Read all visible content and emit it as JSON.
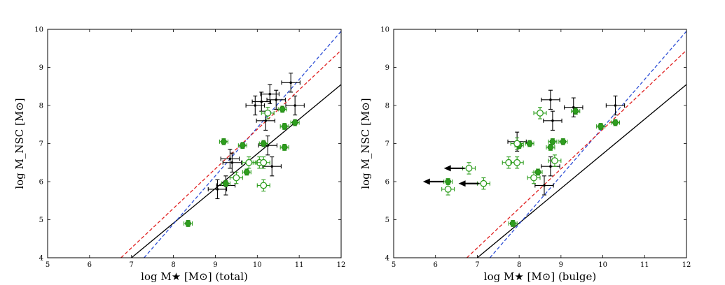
{
  "chart_data": [
    {
      "type": "scatter",
      "panel": "left",
      "xlabel": "log M★ [M⊙]  (total)",
      "ylabel": "log M_NSC  [M⊙]",
      "xlim": [
        5,
        12
      ],
      "ylim": [
        4,
        10
      ],
      "xticks": [
        "5",
        "6",
        "7",
        "8",
        "9",
        "10",
        "11",
        "12"
      ],
      "yticks": [
        "4",
        "5",
        "6",
        "7",
        "8",
        "9",
        "10"
      ],
      "lines": [
        {
          "name": "black-fit",
          "color": "#000000",
          "dash": "solid",
          "x": [
            7.0,
            12.0
          ],
          "y": [
            4.0,
            8.55
          ]
        },
        {
          "name": "blue-fit",
          "color": "#2e4fd6",
          "dash": "dashed",
          "x": [
            7.3,
            12.0
          ],
          "y": [
            4.0,
            9.95
          ]
        },
        {
          "name": "red-fit",
          "color": "#e02020",
          "dash": "dashed",
          "x": [
            6.75,
            12.0
          ],
          "y": [
            4.0,
            9.45
          ]
        }
      ],
      "series": [
        {
          "name": "black-points",
          "color": "#000000",
          "marker": "small-dot",
          "points": [
            [
              10.8,
              8.6
            ],
            [
              10.3,
              8.3
            ],
            [
              10.1,
              8.1
            ],
            [
              9.95,
              8.0
            ],
            [
              10.9,
              8.0
            ],
            [
              10.45,
              8.15
            ],
            [
              10.2,
              7.6
            ],
            [
              10.25,
              6.95
            ],
            [
              10.35,
              6.4
            ],
            [
              9.35,
              6.6
            ],
            [
              9.4,
              6.5
            ],
            [
              9.05,
              5.8
            ],
            [
              9.25,
              5.9
            ]
          ],
          "xerr": 0.22,
          "yerr": 0.25
        },
        {
          "name": "filled-green",
          "color": "#2e9e1e",
          "marker": "filled-circle",
          "points": [
            [
              9.2,
              7.05
            ],
            [
              9.65,
              6.95
            ],
            [
              10.15,
              7.0
            ],
            [
              10.6,
              7.9
            ],
            [
              10.65,
              7.45
            ],
            [
              10.9,
              7.55
            ],
            [
              10.65,
              6.9
            ],
            [
              9.75,
              6.25
            ],
            [
              9.25,
              5.95
            ],
            [
              8.35,
              4.9
            ]
          ],
          "xerr": 0.1,
          "yerr": 0.08
        },
        {
          "name": "open-green",
          "color": "#2e9e1e",
          "marker": "open-circle",
          "points": [
            [
              10.25,
              7.8
            ],
            [
              9.8,
              6.5
            ],
            [
              10.05,
              6.5
            ],
            [
              10.15,
              6.5
            ],
            [
              9.5,
              6.1
            ],
            [
              10.15,
              5.9
            ]
          ],
          "xerr": 0.15,
          "yerr": 0.15
        }
      ]
    },
    {
      "type": "scatter",
      "panel": "right",
      "xlabel": "log M★ [M⊙]  (bulge)",
      "ylabel": "log M_NSC  [M⊙]",
      "xlim": [
        5,
        12
      ],
      "ylim": [
        4,
        10
      ],
      "xticks": [
        "5",
        "6",
        "7",
        "8",
        "9",
        "10",
        "11",
        "12"
      ],
      "yticks": [
        "4",
        "5",
        "6",
        "7",
        "8",
        "9",
        "10"
      ],
      "lines": [
        {
          "name": "black-fit",
          "color": "#000000",
          "dash": "solid",
          "x": [
            7.0,
            12.0
          ],
          "y": [
            4.0,
            8.55
          ]
        },
        {
          "name": "blue-fit",
          "color": "#2e4fd6",
          "dash": "dashed",
          "x": [
            7.3,
            12.0
          ],
          "y": [
            4.0,
            9.95
          ]
        },
        {
          "name": "red-fit",
          "color": "#e02020",
          "dash": "dashed",
          "x": [
            6.75,
            12.0
          ],
          "y": [
            4.0,
            9.45
          ]
        }
      ],
      "series": [
        {
          "name": "black-points",
          "color": "#000000",
          "marker": "small-dot",
          "points": [
            [
              8.75,
              8.15
            ],
            [
              8.8,
              7.6
            ],
            [
              9.3,
              7.95
            ],
            [
              10.3,
              8.0
            ],
            [
              7.95,
              7.05
            ],
            [
              8.75,
              6.4
            ],
            [
              8.6,
              5.9
            ]
          ],
          "xerr": 0.22,
          "yerr": 0.25
        },
        {
          "name": "filled-green",
          "color": "#2e9e1e",
          "marker": "filled-circle",
          "points": [
            [
              9.35,
              7.85
            ],
            [
              9.95,
              7.45
            ],
            [
              10.3,
              7.55
            ],
            [
              8.0,
              6.95
            ],
            [
              8.25,
              7.0
            ],
            [
              8.8,
              7.05
            ],
            [
              9.05,
              7.05
            ],
            [
              8.75,
              6.9
            ],
            [
              8.45,
              6.25
            ],
            [
              6.3,
              6.0
            ],
            [
              7.85,
              4.9
            ]
          ],
          "xerr": 0.1,
          "yerr": 0.08
        },
        {
          "name": "open-green",
          "color": "#2e9e1e",
          "marker": "open-circle",
          "points": [
            [
              8.5,
              7.8
            ],
            [
              7.95,
              7.0
            ],
            [
              7.75,
              6.5
            ],
            [
              7.95,
              6.5
            ],
            [
              8.85,
              6.55
            ],
            [
              8.35,
              6.1
            ],
            [
              6.8,
              6.35
            ],
            [
              7.15,
              5.95
            ],
            [
              6.3,
              5.8
            ]
          ],
          "xerr": 0.15,
          "yerr": 0.15
        },
        {
          "name": "upper-limit-arrows",
          "color": "#000000",
          "marker": "arrow-left",
          "points": [
            [
              6.8,
              6.35
            ],
            [
              7.15,
              5.95
            ],
            [
              6.3,
              6.0
            ]
          ],
          "dx": -0.6
        }
      ]
    }
  ]
}
